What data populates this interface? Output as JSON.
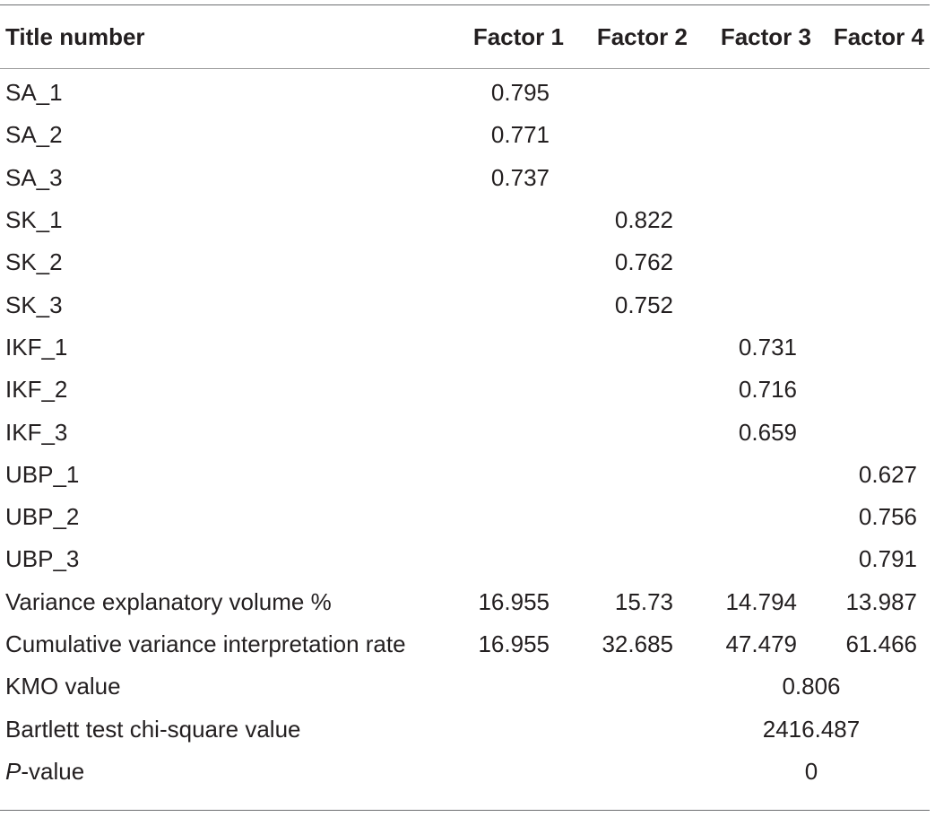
{
  "table": {
    "headers": [
      "Title number",
      "Factor 1",
      "Factor 2",
      "Factor 3",
      "Factor 4"
    ],
    "loadings": [
      {
        "label": "SA_1",
        "values": [
          "0.795",
          "",
          "",
          ""
        ]
      },
      {
        "label": "SA_2",
        "values": [
          "0.771",
          "",
          "",
          ""
        ]
      },
      {
        "label": "SA_3",
        "values": [
          "0.737",
          "",
          "",
          ""
        ]
      },
      {
        "label": "SK_1",
        "values": [
          "",
          "0.822",
          "",
          ""
        ]
      },
      {
        "label": "SK_2",
        "values": [
          "",
          "0.762",
          "",
          ""
        ]
      },
      {
        "label": "SK_3",
        "values": [
          "",
          "0.752",
          "",
          ""
        ]
      },
      {
        "label": "IKF_1",
        "values": [
          "",
          "",
          "0.731",
          ""
        ]
      },
      {
        "label": "IKF_2",
        "values": [
          "",
          "",
          "0.716",
          ""
        ]
      },
      {
        "label": "IKF_3",
        "values": [
          "",
          "",
          "0.659",
          ""
        ]
      },
      {
        "label": "UBP_1",
        "values": [
          "",
          "",
          "",
          "0.627"
        ]
      },
      {
        "label": "UBP_2",
        "values": [
          "",
          "",
          "",
          "0.756"
        ]
      },
      {
        "label": "UBP_3",
        "values": [
          "",
          "",
          "",
          "0.791"
        ]
      },
      {
        "label": "Variance explanatory volume %",
        "values": [
          "16.955",
          "15.73",
          "14.794",
          "13.987"
        ]
      },
      {
        "label": "Cumulative variance interpretation rate",
        "values": [
          "16.955",
          "32.685",
          "47.479",
          "61.466"
        ]
      }
    ],
    "summary": [
      {
        "label": "KMO value",
        "value": "0.806"
      },
      {
        "label": "Bartlett test chi-square value",
        "value": "2416.487"
      },
      {
        "label_italic": "P",
        "label_rest": "-value",
        "value": "0"
      }
    ]
  }
}
